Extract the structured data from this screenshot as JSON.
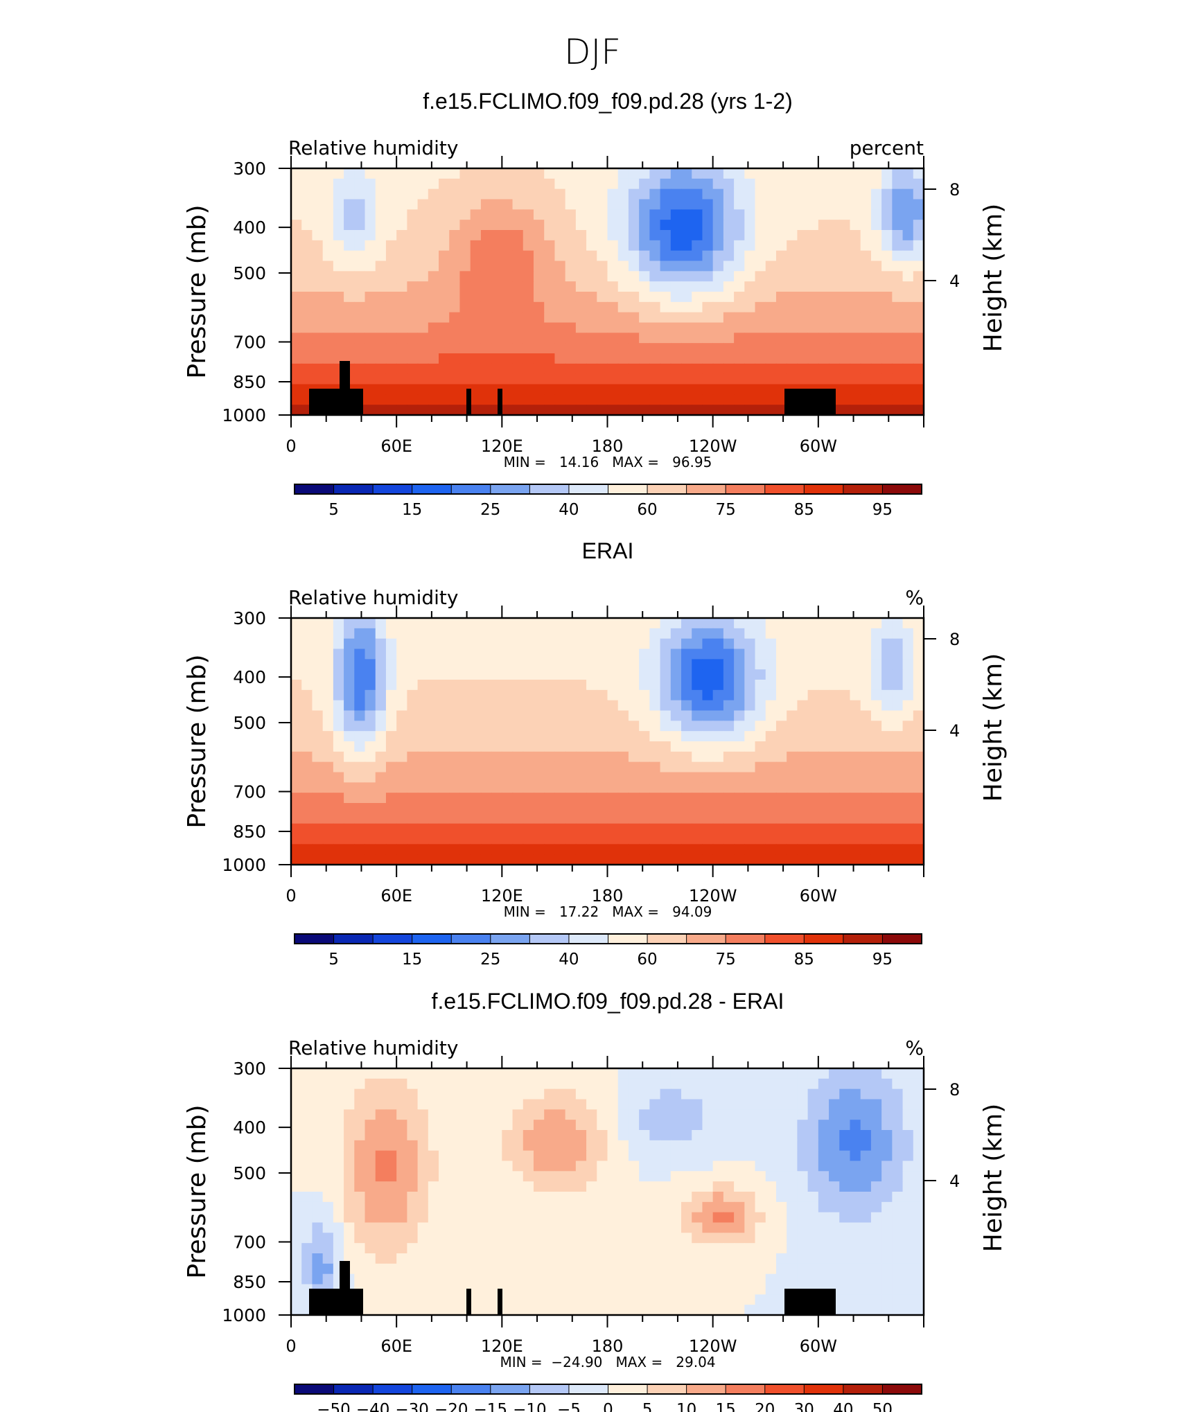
{
  "figure": {
    "title": "DJF"
  },
  "chart_data": [
    {
      "type": "heatmap",
      "title": "f.e15.FCLIMO.f09_f09.pd.28 (yrs 1-2)",
      "left_label": "Relative humidity",
      "right_label": "percent",
      "ylabel": "Pressure (mb)",
      "ylabel_right": "Height (km)",
      "x_ticks": [
        "0",
        "60E",
        "120E",
        "180",
        "120W",
        "60W"
      ],
      "y_ticks": [
        "300",
        "400",
        "500",
        "700",
        "850",
        "1000"
      ],
      "y_ticks_right": [
        "8",
        "4"
      ],
      "xlim": [
        0,
        360
      ],
      "ylim": [
        1000,
        300
      ],
      "stats_text": "MIN =   14.16   MAX =   96.95",
      "min": 14.16,
      "max": 96.95,
      "colorbar_labels": [
        "5",
        "15",
        "25",
        "40",
        "60",
        "75",
        "85",
        "95"
      ],
      "colors": [
        "#0a0a78",
        "#0a28b4",
        "#1446dc",
        "#1e64f0",
        "#4a82f0",
        "#7aa4f0",
        "#b4c8f6",
        "#dde9fa",
        "#fff0dc",
        "#fcd2b6",
        "#f8aa8a",
        "#f47e5e",
        "#f0502c",
        "#e0320a",
        "#b4200a",
        "#8c0a0a"
      ]
    },
    {
      "type": "heatmap",
      "title": "ERAI",
      "left_label": "Relative humidity",
      "right_label": "%",
      "ylabel": "Pressure (mb)",
      "ylabel_right": "Height (km)",
      "x_ticks": [
        "0",
        "60E",
        "120E",
        "180",
        "120W",
        "60W"
      ],
      "y_ticks": [
        "300",
        "400",
        "500",
        "700",
        "850",
        "1000"
      ],
      "y_ticks_right": [
        "8",
        "4"
      ],
      "xlim": [
        0,
        360
      ],
      "ylim": [
        1000,
        300
      ],
      "stats_text": "MIN =   17.22   MAX =   94.09",
      "min": 17.22,
      "max": 94.09,
      "colorbar_labels": [
        "5",
        "15",
        "25",
        "40",
        "60",
        "75",
        "85",
        "95"
      ],
      "colors": [
        "#0a0a78",
        "#0a28b4",
        "#1446dc",
        "#1e64f0",
        "#4a82f0",
        "#7aa4f0",
        "#b4c8f6",
        "#dde9fa",
        "#fff0dc",
        "#fcd2b6",
        "#f8aa8a",
        "#f47e5e",
        "#f0502c",
        "#e0320a",
        "#b4200a",
        "#8c0a0a"
      ]
    },
    {
      "type": "heatmap",
      "title": "f.e15.FCLIMO.f09_f09.pd.28 - ERAI",
      "left_label": "Relative humidity",
      "right_label": "%",
      "ylabel": "Pressure (mb)",
      "ylabel_right": "Height (km)",
      "x_ticks": [
        "0",
        "60E",
        "120E",
        "180",
        "120W",
        "60W"
      ],
      "y_ticks": [
        "300",
        "400",
        "500",
        "700",
        "850",
        "1000"
      ],
      "y_ticks_right": [
        "8",
        "4"
      ],
      "xlim": [
        0,
        360
      ],
      "ylim": [
        1000,
        300
      ],
      "stats_text": "MIN =  −24.90   MAX =   29.04",
      "min": -24.9,
      "max": 29.04,
      "colorbar_labels": [
        "−50",
        "−40",
        "−30",
        "−20",
        "−15",
        "−10",
        "−5",
        "0",
        "5",
        "10",
        "15",
        "20",
        "30",
        "40",
        "50"
      ],
      "colors": [
        "#0a0a78",
        "#0a28b4",
        "#1446dc",
        "#1e64f0",
        "#4a82f0",
        "#7aa4f0",
        "#b4c8f6",
        "#dde9fa",
        "#fff0dc",
        "#fcd2b6",
        "#f8aa8a",
        "#f47e5e",
        "#f0502c",
        "#e0320a",
        "#b4200a",
        "#8c0a0a"
      ]
    }
  ]
}
